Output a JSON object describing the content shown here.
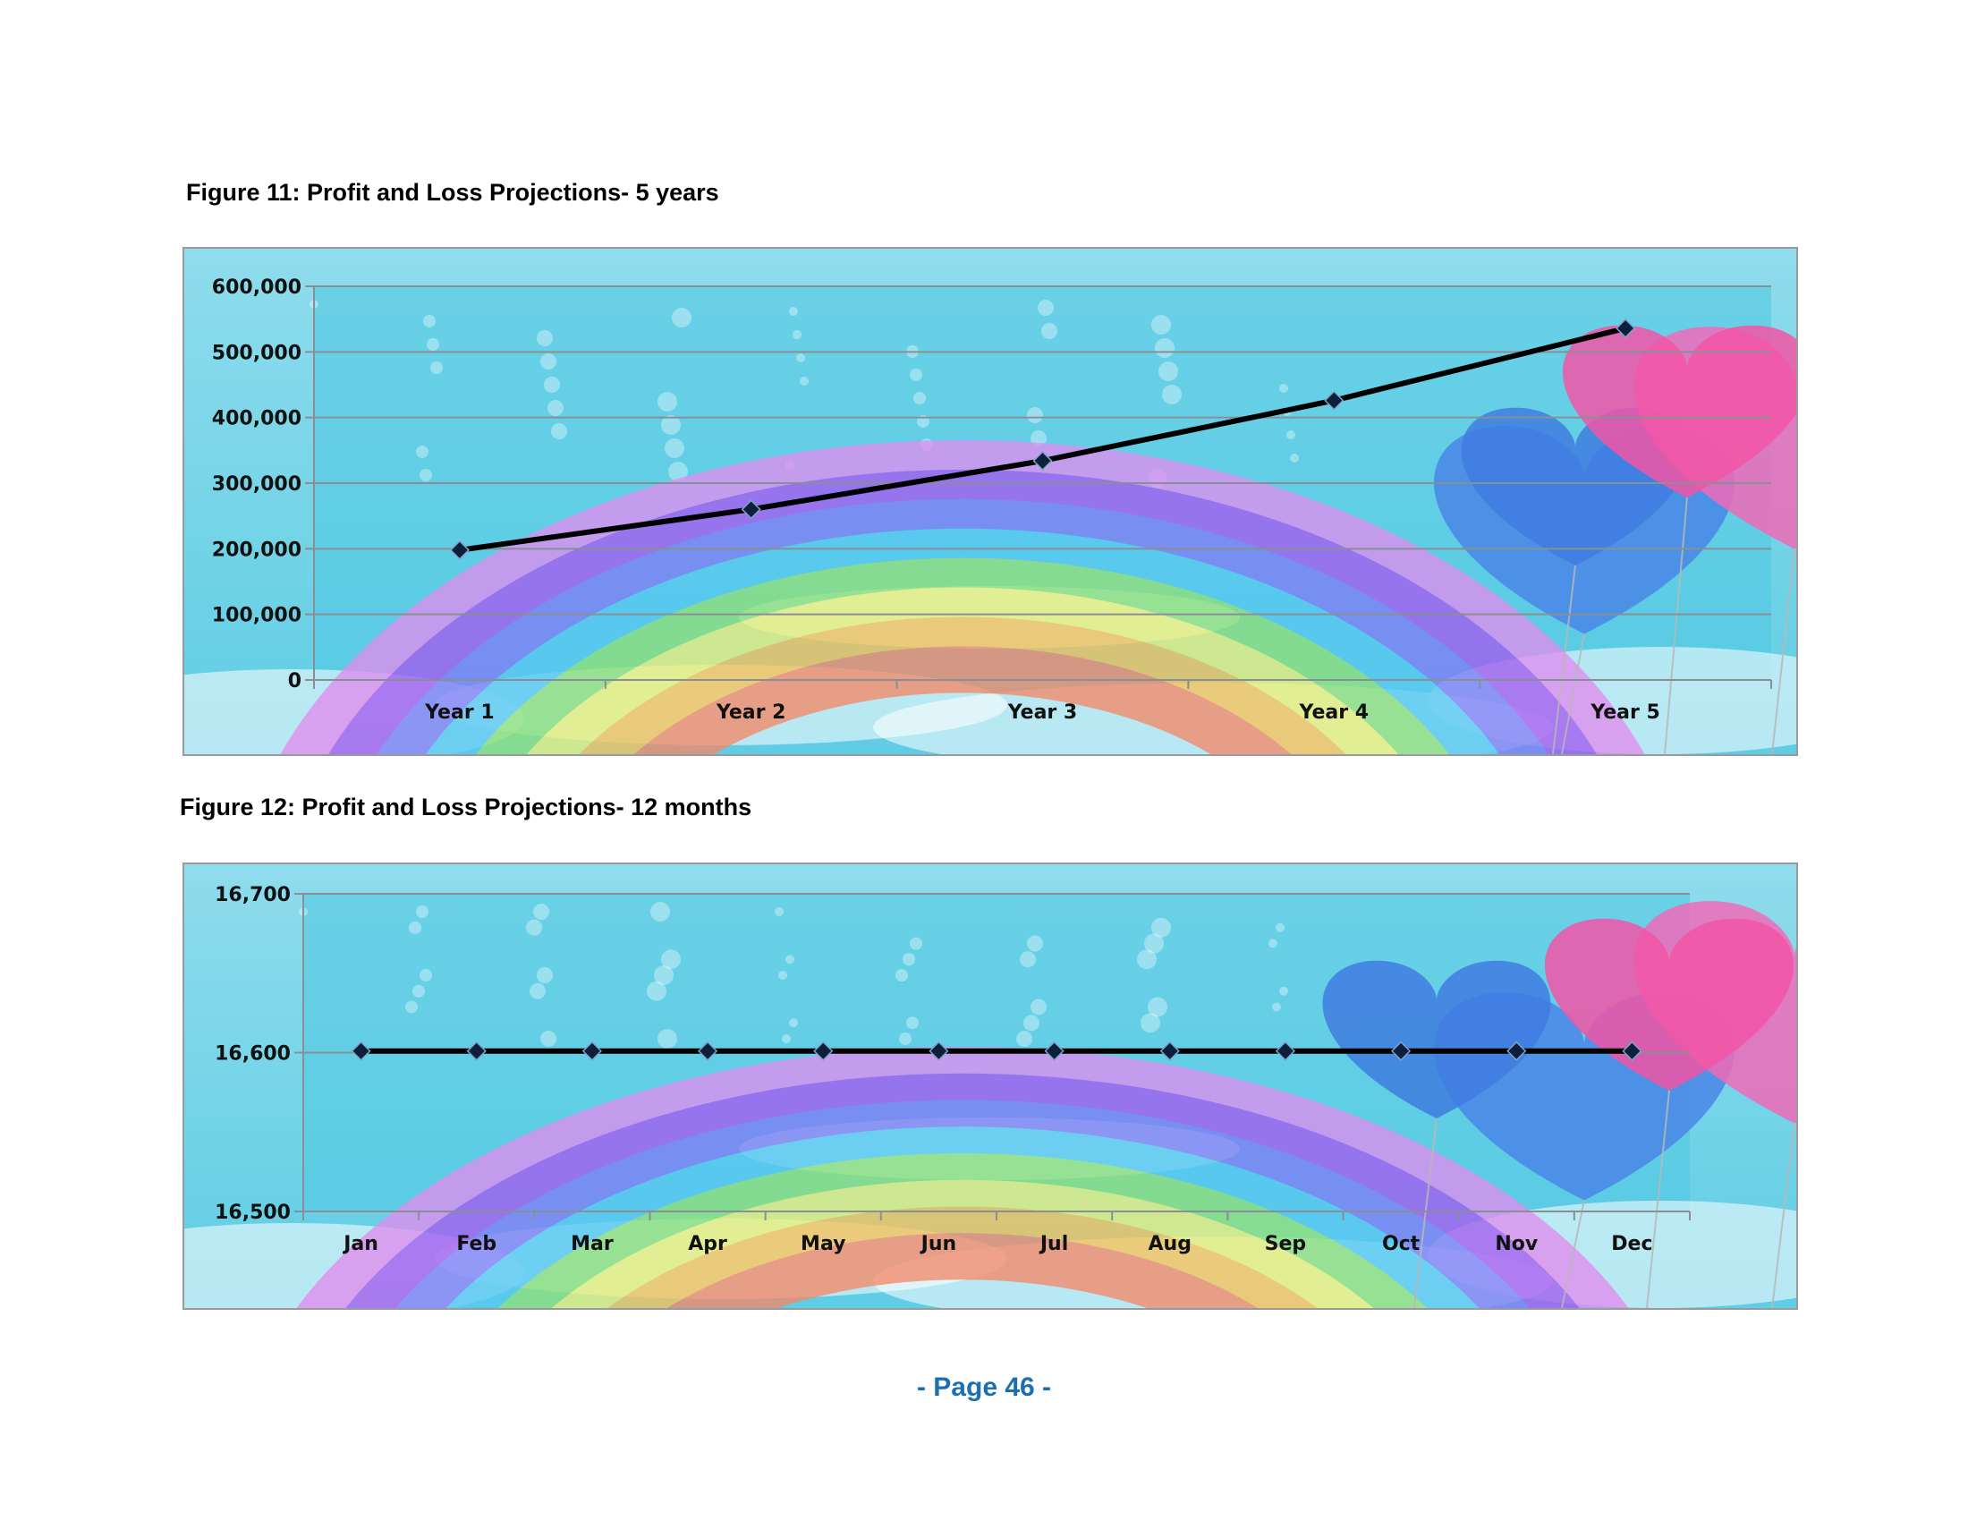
{
  "captions": {
    "figure11": "Figure 11: Profit and Loss Projections- 5 years",
    "figure12": "Figure 12: Profit and Loss Projections- 12 months"
  },
  "footer": {
    "page": "- Page 46 -"
  },
  "colors": {
    "line": "#000000",
    "marker": "#0d1f3a",
    "gridline": "#8a8f96",
    "sky_top": "#8fdcec",
    "sky_bottom": "#5fcde4",
    "page_number": "#1a6fb5"
  },
  "chart_data": [
    {
      "type": "line",
      "categories": [
        "Year 1",
        "Year 2",
        "Year 3",
        "Year 4",
        "Year 5"
      ],
      "series": [
        {
          "values": [
            198000,
            260000,
            334000,
            426000,
            536000
          ]
        }
      ],
      "yticks": [
        "0",
        "100,000",
        "200,000",
        "300,000",
        "400,000",
        "500,000",
        "600,000"
      ],
      "ylim": [
        0,
        600000
      ],
      "grid": true,
      "marker": "diamond"
    },
    {
      "type": "line",
      "categories": [
        "Jan",
        "Feb",
        "Mar",
        "Apr",
        "May",
        "Jun",
        "Jul",
        "Aug",
        "Sep",
        "Oct",
        "Nov",
        "Dec"
      ],
      "series": [
        {
          "values": [
            16601,
            16601,
            16601,
            16601,
            16601,
            16601,
            16601,
            16601,
            16601,
            16601,
            16601,
            16601
          ]
        }
      ],
      "yticks": [
        "16,500",
        "16,600",
        "16,700"
      ],
      "ylim": [
        16500,
        16700
      ],
      "grid": true,
      "marker": "diamond"
    }
  ]
}
